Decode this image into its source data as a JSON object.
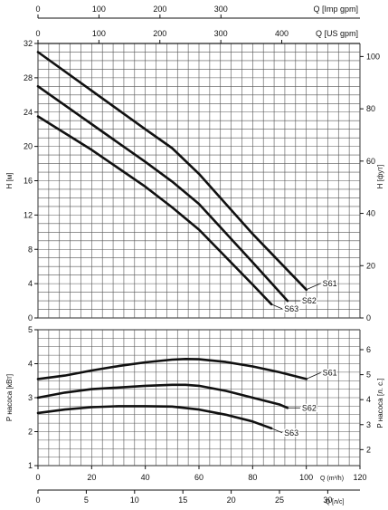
{
  "chart_data": [
    {
      "type": "line",
      "title": "",
      "xlabel": "Q (m³/h)",
      "ylabel": "H [м]",
      "y2label": "H [фут]",
      "top_axes": [
        {
          "label": "Q [Imp gpm]",
          "ticks": [
            "0",
            "100",
            "200",
            "300"
          ],
          "ticks_m3h": [
            0,
            22.73,
            45.46,
            68.19
          ]
        },
        {
          "label": "Q [US gpm]",
          "ticks": [
            "0",
            "100",
            "200",
            "300",
            "400"
          ],
          "ticks_m3h": [
            0,
            22.71,
            45.42,
            68.14,
            90.85
          ]
        }
      ],
      "xlim": [
        0,
        120
      ],
      "ylim": [
        0,
        32
      ],
      "yticks": [
        "0",
        "4",
        "8",
        "12",
        "16",
        "20",
        "24",
        "28",
        "32"
      ],
      "y2ticks": [
        "0",
        "20",
        "40",
        "60",
        "80",
        "100"
      ],
      "y2ticks_m": [
        0,
        6.096,
        12.192,
        18.288,
        24.384,
        30.48
      ],
      "grid": true,
      "series": [
        {
          "name": "S61",
          "x": [
            0,
            20,
            40,
            50,
            60,
            80,
            100
          ],
          "y": [
            31.0,
            26.5,
            22.0,
            19.8,
            16.8,
            9.8,
            3.3
          ]
        },
        {
          "name": "S62",
          "x": [
            0,
            20,
            40,
            50,
            60,
            80,
            93
          ],
          "y": [
            27.0,
            22.6,
            18.2,
            15.9,
            13.3,
            6.5,
            2.0
          ]
        },
        {
          "name": "S63",
          "x": [
            0,
            20,
            40,
            50,
            60,
            80,
            87
          ],
          "y": [
            23.5,
            19.6,
            15.3,
            12.9,
            10.3,
            3.9,
            1.6
          ]
        }
      ]
    },
    {
      "type": "line",
      "title": "",
      "xlabel": "Q (m³/h)",
      "ylabel": "P насоса [кВт]",
      "y2label": "P насоса [л. с.]",
      "xlim": [
        0,
        120
      ],
      "ylim": [
        1,
        5
      ],
      "yticks": [
        "1",
        "2",
        "3",
        "4",
        "5"
      ],
      "y2ticks": [
        "2",
        "3",
        "4",
        "5",
        "6"
      ],
      "y2ticks_kw": [
        1.471,
        2.206,
        2.942,
        3.677,
        4.413
      ],
      "xticks": [
        "0",
        "20",
        "40",
        "60",
        "80",
        "100",
        "120"
      ],
      "bottom_axis": {
        "label": "Q [л/с]",
        "ticks": [
          "0",
          "5",
          "10",
          "15",
          "20",
          "25",
          "30"
        ],
        "ticks_m3h": [
          0,
          18,
          36,
          54,
          72,
          90,
          108
        ]
      },
      "grid": true,
      "series": [
        {
          "name": "S61",
          "x": [
            0,
            10,
            20,
            30,
            40,
            50,
            55,
            60,
            70,
            80,
            90,
            100
          ],
          "y": [
            3.55,
            3.65,
            3.8,
            3.93,
            4.04,
            4.12,
            4.14,
            4.13,
            4.05,
            3.92,
            3.75,
            3.55
          ]
        },
        {
          "name": "S62",
          "x": [
            0,
            10,
            20,
            30,
            40,
            50,
            55,
            60,
            70,
            80,
            90,
            93
          ],
          "y": [
            3.0,
            3.15,
            3.25,
            3.3,
            3.35,
            3.38,
            3.38,
            3.35,
            3.2,
            3.0,
            2.8,
            2.7
          ]
        },
        {
          "name": "S63",
          "x": [
            0,
            10,
            20,
            30,
            40,
            50,
            60,
            70,
            80,
            87
          ],
          "y": [
            2.55,
            2.65,
            2.72,
            2.75,
            2.75,
            2.74,
            2.65,
            2.5,
            2.3,
            2.1
          ]
        }
      ]
    }
  ]
}
